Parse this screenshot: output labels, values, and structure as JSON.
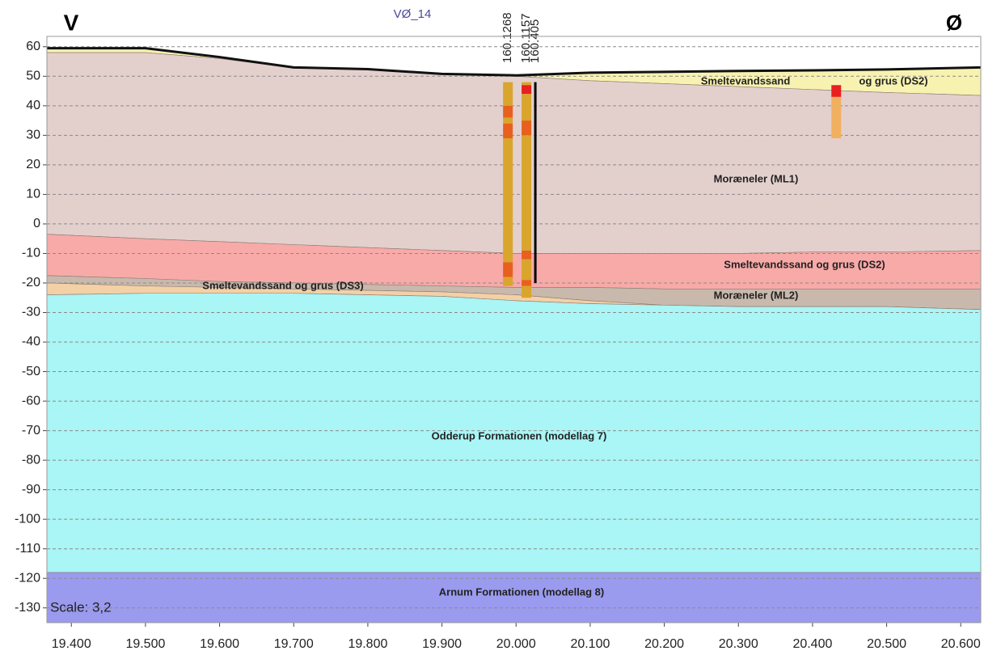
{
  "chart_data": {
    "type": "cross-section",
    "title": "VØ_14",
    "left_label": "V",
    "right_label": "Ø",
    "scale_label": "Scale: 3,2",
    "xlim": [
      19367,
      20627
    ],
    "ylim": [
      -135,
      63.5
    ],
    "grid": true,
    "xticks": [
      {
        "value": 19400,
        "label": "19.400"
      },
      {
        "value": 19500,
        "label": "19.500"
      },
      {
        "value": 19600,
        "label": "19.600"
      },
      {
        "value": 19700,
        "label": "19.700"
      },
      {
        "value": 19800,
        "label": "19.800"
      },
      {
        "value": 19900,
        "label": "19.900"
      },
      {
        "value": 20000,
        "label": "20.000"
      },
      {
        "value": 20100,
        "label": "20.100"
      },
      {
        "value": 20200,
        "label": "20.200"
      },
      {
        "value": 20300,
        "label": "20.300"
      },
      {
        "value": 20400,
        "label": "20.400"
      },
      {
        "value": 20500,
        "label": "20.500"
      },
      {
        "value": 20600,
        "label": "20.600"
      }
    ],
    "yticks": [
      60,
      50,
      40,
      30,
      20,
      10,
      0,
      -10,
      -20,
      -30,
      -40,
      -50,
      -60,
      -70,
      -80,
      -90,
      -100,
      -110,
      -120,
      -130
    ],
    "x": [
      19367,
      19500,
      19600,
      19700,
      19800,
      19900,
      20000,
      20100,
      20200,
      20300,
      20400,
      20500,
      20627
    ],
    "surface": [
      59.5,
      59.5,
      56.5,
      53,
      52.4,
      50.8,
      50.3,
      51.2,
      51.5,
      51.8,
      52,
      52.3,
      53
    ],
    "surface_color": "#111111",
    "layers": [
      {
        "labels": [
          "Smeltevandssand",
          "og grus (DS2)"
        ],
        "color": "#f7f2b0",
        "bottom": [
          58,
          58,
          56,
          52.8,
          52.2,
          50.6,
          50,
          48.5,
          47.5,
          46.5,
          45.5,
          44.5,
          43.5
        ]
      },
      {
        "labels": [
          "Moræneler (ML1)"
        ],
        "color": "#e3d0cd",
        "bottom": [
          -3.5,
          -5,
          -6,
          -7,
          -8,
          -9,
          -10,
          -10,
          -10,
          -10,
          -9.5,
          -9.5,
          -9
        ]
      },
      {
        "labels": [
          "Smeltevandssand og grus (DS2)"
        ],
        "color": "#f7aaa8",
        "bottom": [
          -17.5,
          -18.5,
          -19.5,
          -20,
          -20.5,
          -21,
          -21.5,
          -21.5,
          -22,
          -22,
          -22,
          -22,
          -22
        ]
      },
      {
        "labels": [
          "Moræneler (ML2)"
        ],
        "color": "#c9b9ad",
        "bottom": [
          -20,
          -21,
          -21.5,
          -22,
          -22.5,
          -23,
          -24,
          -26,
          -27.5,
          -28,
          -28,
          -28,
          -29
        ]
      },
      {
        "labels": [
          "Smeltevandssand og grus (DS3)"
        ],
        "color": "#f3d0a6",
        "bottom": [
          -24,
          -23.5,
          -23.5,
          -23.5,
          -24,
          -24.5,
          -26,
          -27,
          -27.5,
          -28,
          -28,
          -28,
          -29
        ]
      },
      {
        "labels": [
          "Odderup Formationen (modellag 7)"
        ],
        "color": "#aaf5f5",
        "bottom": [
          -118,
          -118,
          -118,
          -118,
          -118,
          -118,
          -118,
          -118,
          -118,
          -118,
          -118,
          -118,
          -118
        ]
      },
      {
        "labels": [
          "Arnum Formationen (modellag 8)"
        ],
        "color": "#9a9aef",
        "bottom": [
          -135,
          -135,
          -135,
          -135,
          -135,
          -135,
          -135,
          -135,
          -135,
          -135,
          -135,
          -135,
          -135
        ]
      }
    ],
    "boreholes": [
      {
        "name": "160.1268",
        "x": 19989,
        "intervals": [
          {
            "top": 48,
            "bottom": 40,
            "color": "#d9a52c"
          },
          {
            "top": 40,
            "bottom": 36,
            "color": "#e8601e"
          },
          {
            "top": 36,
            "bottom": 34,
            "color": "#d9a52c"
          },
          {
            "top": 34,
            "bottom": 29,
            "color": "#e8601e"
          },
          {
            "top": 29,
            "bottom": -13,
            "color": "#d9a52c"
          },
          {
            "top": -13,
            "bottom": -18,
            "color": "#e8601e"
          },
          {
            "top": -18,
            "bottom": -21,
            "color": "#d9a52c"
          }
        ]
      },
      {
        "name": "160.1157",
        "x": 20014,
        "intervals": [
          {
            "top": 48,
            "bottom": 47,
            "color": "#d9a52c"
          },
          {
            "top": 47,
            "bottom": 44,
            "color": "#e82020"
          },
          {
            "top": 44,
            "bottom": 35,
            "color": "#d9a52c"
          },
          {
            "top": 35,
            "bottom": 30,
            "color": "#e8601e"
          },
          {
            "top": 30,
            "bottom": -9,
            "color": "#d9a52c"
          },
          {
            "top": -9,
            "bottom": -12,
            "color": "#e8601e"
          },
          {
            "top": -12,
            "bottom": -19,
            "color": "#d9a52c"
          },
          {
            "top": -19,
            "bottom": -21,
            "color": "#e8601e"
          },
          {
            "top": -21,
            "bottom": -25,
            "color": "#d9a52c"
          }
        ]
      },
      {
        "name": "160.405",
        "x": 20026,
        "intervals": [
          {
            "top": 48,
            "bottom": -20,
            "color": "#000000"
          }
        ]
      }
    ],
    "extra_borehole": {
      "x": 20432,
      "intervals": [
        {
          "top": 47,
          "bottom": 43,
          "color": "#e82020"
        },
        {
          "top": 43,
          "bottom": 29,
          "color": "#f0b060"
        }
      ]
    }
  }
}
